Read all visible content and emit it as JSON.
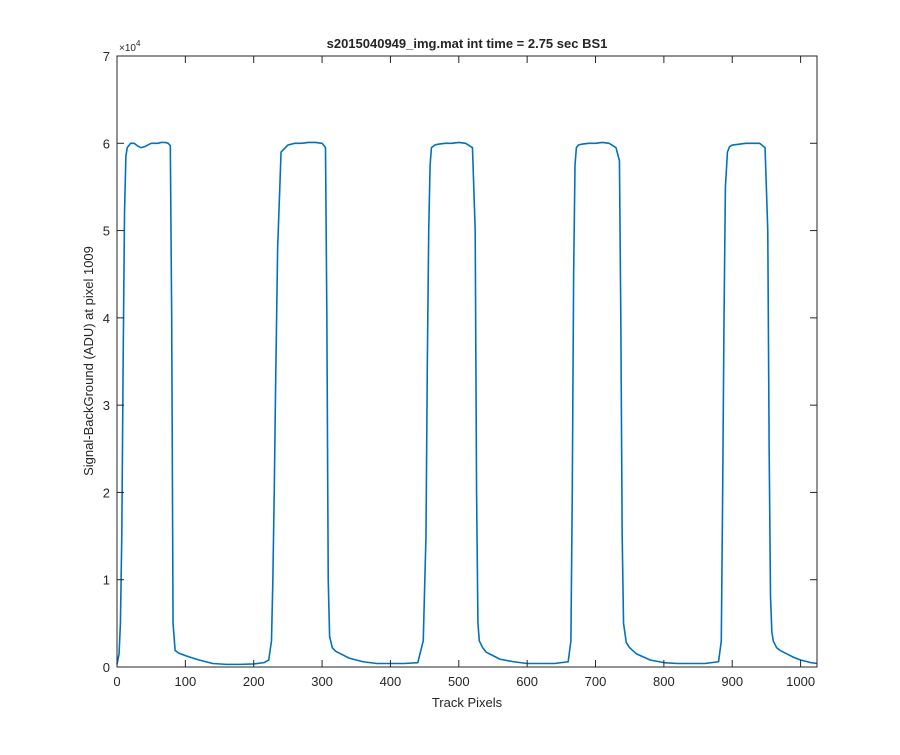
{
  "chart_data": {
    "type": "line",
    "title": "s2015040949_img.mat int time = 2.75 sec   BS1",
    "xlabel": "Track Pixels",
    "ylabel": "Signal-BackGround (ADU) at pixel 1009",
    "xlim": [
      0,
      1024
    ],
    "ylim": [
      0,
      70000
    ],
    "y_exponent_label": "×10",
    "y_exponent_value": "4",
    "xticks": [
      0,
      100,
      200,
      300,
      400,
      500,
      600,
      700,
      800,
      900,
      1000
    ],
    "xtick_labels": [
      "0",
      "100",
      "200",
      "300",
      "400",
      "500",
      "600",
      "700",
      "800",
      "900",
      "1000"
    ],
    "yticks": [
      0,
      10000,
      20000,
      30000,
      40000,
      50000,
      60000,
      70000
    ],
    "ytick_labels": [
      "0",
      "1",
      "2",
      "3",
      "4",
      "5",
      "6",
      "7"
    ],
    "grid": false,
    "line_color": "#0072BD",
    "series": [
      {
        "x": [
          0,
          3,
          5,
          7,
          9,
          11,
          13,
          15,
          20,
          25,
          30,
          35,
          40,
          45,
          50,
          55,
          60,
          65,
          70,
          75,
          78,
          80,
          82,
          85,
          90,
          100,
          120,
          140,
          160,
          180,
          200,
          215,
          222,
          226,
          228,
          230,
          232,
          235,
          240,
          250,
          260,
          270,
          280,
          290,
          300,
          305,
          307,
          309,
          311,
          315,
          320,
          330,
          340,
          360,
          380,
          400,
          420,
          440,
          448,
          452,
          454,
          456,
          458,
          460,
          465,
          470,
          480,
          490,
          500,
          510,
          520,
          524,
          526,
          528,
          530,
          535,
          540,
          550,
          560,
          580,
          600,
          620,
          640,
          660,
          664,
          666,
          668,
          670,
          672,
          675,
          680,
          690,
          700,
          710,
          720,
          730,
          735,
          737,
          739,
          741,
          745,
          750,
          760,
          780,
          800,
          820,
          840,
          860,
          880,
          884,
          886,
          888,
          890,
          893,
          896,
          900,
          910,
          920,
          930,
          940,
          948,
          952,
          954,
          956,
          958,
          960,
          965,
          970,
          980,
          990,
          1000,
          1010,
          1015,
          1024
        ],
        "y": [
          300,
          1500,
          5000,
          15000,
          35000,
          52000,
          58500,
          59500,
          60000,
          60000,
          59700,
          59500,
          59600,
          59800,
          60000,
          60000,
          60000,
          60100,
          60100,
          60000,
          59700,
          40000,
          5000,
          1900,
          1600,
          1300,
          800,
          400,
          300,
          300,
          350,
          500,
          800,
          3000,
          10000,
          20000,
          32000,
          48000,
          59000,
          59800,
          60000,
          60000,
          60100,
          60100,
          60000,
          59500,
          40000,
          10000,
          3500,
          2200,
          1800,
          1400,
          1000,
          600,
          400,
          400,
          400,
          500,
          3000,
          15000,
          35000,
          50000,
          57500,
          59500,
          59800,
          59900,
          60000,
          60000,
          60100,
          60000,
          59500,
          50000,
          20000,
          5000,
          3000,
          2200,
          1700,
          1300,
          900,
          600,
          400,
          400,
          400,
          600,
          3000,
          20000,
          45000,
          57500,
          59500,
          59800,
          59900,
          60000,
          60000,
          60100,
          60000,
          59500,
          58000,
          40000,
          15000,
          5000,
          2800,
          2200,
          1500,
          800,
          500,
          400,
          400,
          400,
          600,
          3000,
          20000,
          40000,
          55000,
          59000,
          59600,
          59800,
          59900,
          60000,
          60000,
          60000,
          59500,
          50000,
          25000,
          8000,
          4000,
          3000,
          2200,
          1900,
          1500,
          1100,
          800,
          600,
          500,
          400
        ]
      }
    ]
  }
}
